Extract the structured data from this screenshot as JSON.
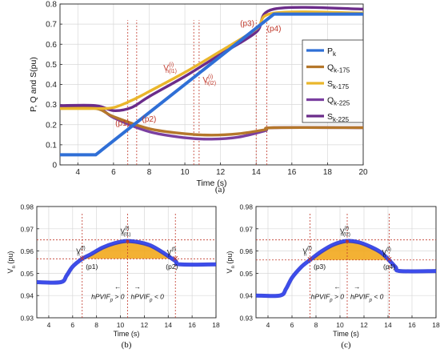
{
  "colors": {
    "Pk": "#2f6fd6",
    "Q175": "#b5772b",
    "S175": "#eab62b",
    "Q225": "#7a3fa0",
    "S225": "#6b2c8a",
    "blue_trace": "#1f2fd8",
    "fill": "#f2a81e",
    "marker": "#c0392b",
    "grid": "#d8d8d8"
  },
  "chart_data": [
    {
      "id": "a",
      "type": "line",
      "ylabel": "P, Q and S(pu)",
      "xlabel": "Time (s)",
      "xlim": [
        3,
        20
      ],
      "ylim": [
        0,
        0.8
      ],
      "xticks": [
        "4",
        "6",
        "8",
        "10",
        "12",
        "14",
        "16",
        "18",
        "20"
      ],
      "yticks": [
        "0",
        "0.1",
        "0.2",
        "0.3",
        "0.4",
        "0.5",
        "0.6",
        "0.7",
        "0.8"
      ],
      "grid": true,
      "legend_position": "right",
      "legend": [
        {
          "main": "P",
          "sub": "k",
          "color_key": "Pk"
        },
        {
          "main": "Q",
          "sub": "k-175",
          "color_key": "Q175"
        },
        {
          "main": "S",
          "sub": "k-175",
          "color_key": "S175"
        },
        {
          "main": "Q",
          "sub": "k-225",
          "color_key": "Q225"
        },
        {
          "main": "S",
          "sub": "k-225",
          "color_key": "S225"
        }
      ],
      "series": [
        {
          "name": "Pk",
          "x": [
            3,
            5,
            15,
            20
          ],
          "y": [
            0.05,
            0.05,
            0.75,
            0.75
          ]
        },
        {
          "name": "Qk-175",
          "x": [
            3,
            5,
            6,
            8,
            10,
            11.5,
            13,
            14.5,
            15,
            20
          ],
          "y": [
            0.28,
            0.28,
            0.24,
            0.18,
            0.155,
            0.148,
            0.155,
            0.175,
            0.185,
            0.185
          ]
        },
        {
          "name": "Sk-175",
          "x": [
            3,
            5,
            6,
            7,
            8,
            10,
            12,
            14,
            15,
            20
          ],
          "y": [
            0.28,
            0.28,
            0.285,
            0.32,
            0.365,
            0.46,
            0.565,
            0.675,
            0.755,
            0.755
          ]
        },
        {
          "name": "Qk-225",
          "x": [
            3,
            5,
            6,
            8,
            10,
            11.5,
            13,
            14.5,
            15,
            20
          ],
          "y": [
            0.29,
            0.29,
            0.235,
            0.165,
            0.135,
            0.128,
            0.138,
            0.17,
            0.185,
            0.185
          ]
        },
        {
          "name": "Sk-225",
          "x": [
            3,
            5,
            6,
            7,
            8,
            10,
            12,
            14,
            15,
            20
          ],
          "y": [
            0.295,
            0.295,
            0.27,
            0.285,
            0.34,
            0.44,
            0.55,
            0.66,
            0.775,
            0.775
          ]
        }
      ],
      "annotations": [
        {
          "label": "(p1)",
          "x": 6.1,
          "y": 0.195
        },
        {
          "label": "(p2)",
          "x": 7.6,
          "y": 0.215
        },
        {
          "label": "(p3)",
          "x": 13.1,
          "y": 0.69
        },
        {
          "label": "(p4)",
          "x": 14.6,
          "y": 0.665
        },
        {
          "label": "V",
          "sup": "(i)",
          "sub": "n(l1)",
          "x": 8.8,
          "y": 0.47
        },
        {
          "label": "V",
          "sup": "(i)",
          "sub": "n(l2)",
          "x": 11.0,
          "y": 0.41
        }
      ],
      "vlines": [
        6.8,
        7.3,
        10.5,
        10.8,
        14.0,
        14.6
      ],
      "caption": "(a)"
    },
    {
      "id": "b",
      "type": "line",
      "ylabel": "V",
      "ylabel_sub": "n",
      "ylabel_rest": " (pu)",
      "xlabel": "Time (s)",
      "xlim": [
        3,
        18
      ],
      "ylim": [
        0.93,
        0.98
      ],
      "xticks": [
        "4",
        "6",
        "8",
        "10",
        "12",
        "14",
        "16",
        "18"
      ],
      "yticks": [
        "0.93",
        "0.94",
        "0.95",
        "0.96",
        "0.97",
        "0.98"
      ],
      "grid": true,
      "series": [
        {
          "name": "Vn",
          "x": [
            3,
            5,
            5.5,
            6,
            6.8,
            7.5,
            8.5,
            9.5,
            10.5,
            11.5,
            12.5,
            13.5,
            14.6,
            15,
            18
          ],
          "y": [
            0.946,
            0.946,
            0.949,
            0.953,
            0.9565,
            0.9585,
            0.9615,
            0.9635,
            0.9645,
            0.964,
            0.9625,
            0.9595,
            0.9555,
            0.954,
            0.954
          ]
        }
      ],
      "peak_x": 10.6,
      "left_x": 6.8,
      "right_x": 14.6,
      "hlines": [
        0.965,
        0.9565
      ],
      "annotations": [
        {
          "label": "V",
          "sup": "(f)",
          "sub": "n",
          "x": 6.3,
          "y": 0.959
        },
        {
          "label": "V",
          "sup": "(f)",
          "sub": "n",
          "x": 13.9,
          "y": 0.9585
        },
        {
          "label": "V",
          "sup": "(i)",
          "sub": "n(l1)",
          "x": 10.0,
          "y": 0.968
        },
        {
          "label": "(p1)",
          "x": 7.1,
          "y": 0.952
        },
        {
          "label": "(p2)",
          "x": 13.8,
          "y": 0.952
        }
      ],
      "hpvif_left": "hPVIF",
      "hpvif_left_sub": "p",
      "hpvif_left_rest": " > 0",
      "hpvif_right": "hPVIF",
      "hpvif_right_sub": "p",
      "hpvif_right_rest": " < 0",
      "caption": "(b)"
    },
    {
      "id": "c",
      "type": "line",
      "ylabel": "V",
      "ylabel_sub": "n",
      "ylabel_rest": " (pu)",
      "xlabel": "Time (s)",
      "xlim": [
        3,
        18
      ],
      "ylim": [
        0.93,
        0.98
      ],
      "xticks": [
        "4",
        "6",
        "8",
        "10",
        "12",
        "14",
        "16",
        "18"
      ],
      "yticks": [
        "0.93",
        "0.94",
        "0.95",
        "0.96",
        "0.97",
        "0.98"
      ],
      "grid": true,
      "series": [
        {
          "name": "Vn",
          "x": [
            3,
            5,
            5.5,
            6,
            6.8,
            7.5,
            8.5,
            9.5,
            10.5,
            11.5,
            12.5,
            13.5,
            14.6,
            15,
            18
          ],
          "y": [
            0.94,
            0.94,
            0.943,
            0.948,
            0.953,
            0.956,
            0.96,
            0.963,
            0.9645,
            0.964,
            0.962,
            0.959,
            0.953,
            0.951,
            0.951
          ]
        }
      ],
      "peak_x": 10.6,
      "left_x": 7.5,
      "right_x": 14.1,
      "hlines": [
        0.965,
        0.956
      ],
      "annotations": [
        {
          "label": "V",
          "sup": "(f)",
          "sub": "n",
          "x": 6.9,
          "y": 0.959
        },
        {
          "label": "V",
          "sup": "(f)",
          "sub": "n",
          "x": 13.5,
          "y": 0.9585
        },
        {
          "label": "V",
          "sup": "(i)",
          "sub": "n(l2)",
          "x": 10.0,
          "y": 0.968
        },
        {
          "label": "(p3)",
          "x": 7.8,
          "y": 0.952
        },
        {
          "label": "(p4)",
          "x": 13.6,
          "y": 0.952
        }
      ],
      "hpvif_left": "hPVIF",
      "hpvif_left_sub": "p",
      "hpvif_left_rest": " > 0",
      "hpvif_right": "hPVIF",
      "hpvif_right_sub": "p",
      "hpvif_right_rest": " < 0",
      "caption": "(c)"
    }
  ]
}
